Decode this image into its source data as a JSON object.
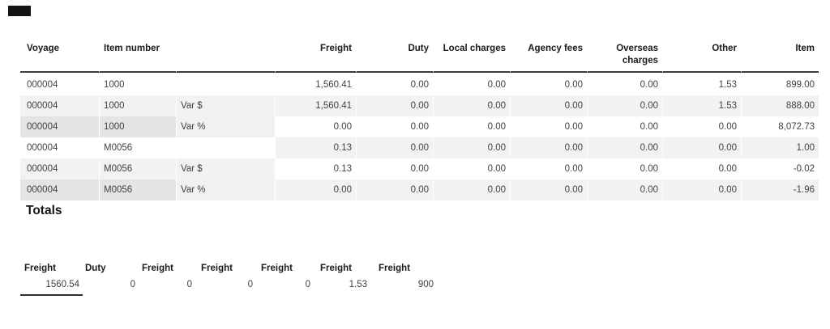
{
  "marker": {
    "name": "dark-marker"
  },
  "colors": {
    "row_shade_light": "#f2f2f2",
    "row_shade_dark": "#e4e4e4",
    "header_underline": "#3d3d3d",
    "header_text": "#1b1b1b",
    "body_text": "#414141"
  },
  "main_table": {
    "columns": [
      {
        "label": "Voyage"
      },
      {
        "label": "Item number"
      },
      {
        "label": ""
      },
      {
        "label": "Freight"
      },
      {
        "label": "Duty"
      },
      {
        "label": "Local charges"
      },
      {
        "label": "Agency fees"
      },
      {
        "label": "Overseas charges"
      },
      {
        "label": "Other"
      },
      {
        "label": "Item"
      }
    ],
    "rows": [
      {
        "cells": [
          "000004",
          "1000",
          "",
          "1,560.41",
          "0.00",
          "0.00",
          "0.00",
          "0.00",
          "1.53",
          "899.00"
        ]
      },
      {
        "cells": [
          "000004",
          "1000",
          "Var $",
          "1,560.41",
          "0.00",
          "0.00",
          "0.00",
          "0.00",
          "1.53",
          "888.00"
        ]
      },
      {
        "cells": [
          "000004",
          "1000",
          "Var %",
          "0.00",
          "0.00",
          "0.00",
          "0.00",
          "0.00",
          "0.00",
          "8,072.73"
        ]
      },
      {
        "cells": [
          "000004",
          "M0056",
          "",
          "0.13",
          "0.00",
          "0.00",
          "0.00",
          "0.00",
          "0.00",
          "1.00"
        ]
      },
      {
        "cells": [
          "000004",
          "M0056",
          "Var $",
          "0.13",
          "0.00",
          "0.00",
          "0.00",
          "0.00",
          "0.00",
          "-0.02"
        ]
      },
      {
        "cells": [
          "000004",
          "M0056",
          "Var %",
          "0.00",
          "0.00",
          "0.00",
          "0.00",
          "0.00",
          "0.00",
          "-1.96"
        ]
      }
    ]
  },
  "totals": {
    "heading": "Totals",
    "columns": [
      "Freight",
      "Duty",
      "Freight",
      "Freight",
      "Freight",
      "Freight",
      "Freight"
    ],
    "values": [
      "1560.54",
      "0",
      "0",
      "0",
      "0",
      "1.53",
      "900"
    ]
  }
}
